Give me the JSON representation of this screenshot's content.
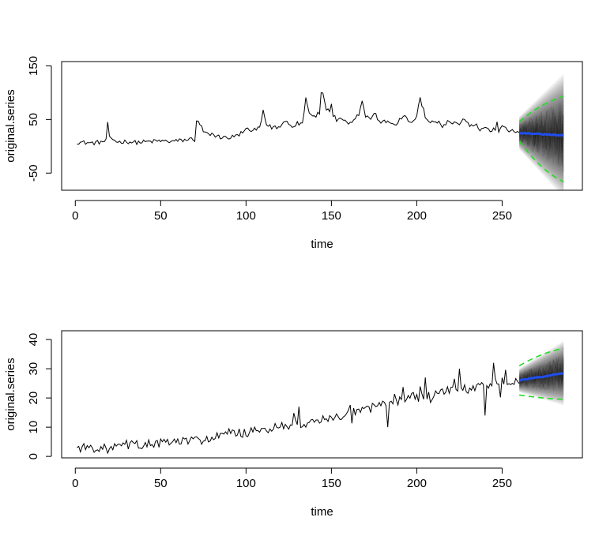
{
  "colors": {
    "observed": "#000000",
    "forecast_mean": "#1f4ef0",
    "interval": "#22dd22",
    "fan": "#000000"
  },
  "chart_data": [
    {
      "type": "line",
      "title": "",
      "xlabel": "time",
      "ylabel": "original.series",
      "xlim": [
        -8,
        297
      ],
      "ylim": [
        -82,
        158
      ],
      "xticks": [
        0,
        50,
        100,
        150,
        200,
        250
      ],
      "yticks": [
        -50,
        50,
        150
      ],
      "grid": false,
      "observed": {
        "x_start": 1,
        "x_end": 260,
        "anchors": [
          [
            1,
            8
          ],
          [
            5,
            7
          ],
          [
            10,
            6
          ],
          [
            15,
            8
          ],
          [
            18,
            10
          ],
          [
            19,
            30
          ],
          [
            20,
            15
          ],
          [
            22,
            13
          ],
          [
            25,
            8
          ],
          [
            30,
            9
          ],
          [
            35,
            7
          ],
          [
            40,
            8
          ],
          [
            45,
            9
          ],
          [
            50,
            10
          ],
          [
            55,
            9
          ],
          [
            60,
            10
          ],
          [
            65,
            12
          ],
          [
            69,
            14
          ],
          [
            70,
            12
          ],
          [
            71,
            48
          ],
          [
            73,
            42
          ],
          [
            75,
            28
          ],
          [
            78,
            20
          ],
          [
            80,
            22
          ],
          [
            85,
            17
          ],
          [
            90,
            16
          ],
          [
            95,
            20
          ],
          [
            100,
            32
          ],
          [
            102,
            28
          ],
          [
            105,
            30
          ],
          [
            108,
            34
          ],
          [
            110,
            64
          ],
          [
            112,
            40
          ],
          [
            115,
            35
          ],
          [
            120,
            36
          ],
          [
            123,
            48
          ],
          [
            125,
            44
          ],
          [
            128,
            36
          ],
          [
            130,
            44
          ],
          [
            133,
            42
          ],
          [
            135,
            90
          ],
          [
            137,
            64
          ],
          [
            140,
            55
          ],
          [
            143,
            62
          ],
          [
            145,
            100
          ],
          [
            147,
            70
          ],
          [
            150,
            64
          ],
          [
            153,
            48
          ],
          [
            155,
            50
          ],
          [
            158,
            45
          ],
          [
            160,
            40
          ],
          [
            163,
            46
          ],
          [
            166,
            60
          ],
          [
            168,
            84
          ],
          [
            170,
            56
          ],
          [
            173,
            50
          ],
          [
            175,
            64
          ],
          [
            178,
            45
          ],
          [
            180,
            44
          ],
          [
            183,
            48
          ],
          [
            185,
            44
          ],
          [
            188,
            40
          ],
          [
            190,
            50
          ],
          [
            193,
            60
          ],
          [
            195,
            44
          ],
          [
            198,
            48
          ],
          [
            200,
            54
          ],
          [
            202,
            92
          ],
          [
            204,
            56
          ],
          [
            207,
            48
          ],
          [
            210,
            42
          ],
          [
            213,
            44
          ],
          [
            215,
            35
          ],
          [
            218,
            48
          ],
          [
            220,
            42
          ],
          [
            223,
            44
          ],
          [
            225,
            38
          ],
          [
            228,
            52
          ],
          [
            230,
            42
          ],
          [
            233,
            34
          ],
          [
            235,
            38
          ],
          [
            238,
            30
          ],
          [
            240,
            36
          ],
          [
            243,
            26
          ],
          [
            245,
            34
          ],
          [
            248,
            25
          ],
          [
            250,
            36
          ],
          [
            253,
            30
          ],
          [
            255,
            28
          ],
          [
            258,
            26
          ],
          [
            260,
            28
          ]
        ],
        "noise": 4
      },
      "forecast": {
        "x_start": 260,
        "x_end": 286,
        "mean_start": 25,
        "mean_end": 20,
        "upper_start": 46,
        "upper_end": 93,
        "lower_start": 10,
        "lower_end": -66,
        "fan_outer_start": 30,
        "fan_outer_end": 115
      }
    },
    {
      "type": "line",
      "title": "",
      "xlabel": "time",
      "ylabel": "original.series",
      "xlim": [
        -8,
        297
      ],
      "ylim": [
        -0.5,
        43
      ],
      "xticks": [
        0,
        50,
        100,
        150,
        200,
        250
      ],
      "yticks": [
        0,
        10,
        20,
        30,
        40
      ],
      "grid": false,
      "observed": {
        "x_start": 1,
        "x_end": 260,
        "anchors": [
          [
            1,
            3
          ],
          [
            10,
            3
          ],
          [
            20,
            2.5
          ],
          [
            30,
            4
          ],
          [
            40,
            4
          ],
          [
            50,
            4.5
          ],
          [
            60,
            5
          ],
          [
            70,
            5.5
          ],
          [
            80,
            6
          ],
          [
            90,
            8
          ],
          [
            100,
            8
          ],
          [
            110,
            9
          ],
          [
            120,
            10
          ],
          [
            130,
            11
          ],
          [
            140,
            12
          ],
          [
            150,
            13
          ],
          [
            160,
            15
          ],
          [
            170,
            16
          ],
          [
            180,
            18
          ],
          [
            190,
            19
          ],
          [
            200,
            21
          ],
          [
            210,
            21
          ],
          [
            220,
            23
          ],
          [
            230,
            23
          ],
          [
            240,
            24
          ],
          [
            250,
            26
          ],
          [
            260,
            25
          ]
        ],
        "spikes": [
          [
            225,
            30
          ],
          [
            240,
            14
          ],
          [
            245,
            32
          ],
          [
            183,
            10
          ],
          [
            205,
            27
          ],
          [
            162,
            9
          ],
          [
            131,
            17
          ]
        ],
        "noise": 1.6
      },
      "forecast": {
        "x_start": 260,
        "x_end": 286,
        "mean_start": 26,
        "mean_end": 28.5,
        "upper_start": 31,
        "upper_end": 37,
        "lower_start": 21,
        "lower_end": 19.5,
        "fan_outer_start": 4,
        "fan_outer_end": 11
      }
    }
  ]
}
